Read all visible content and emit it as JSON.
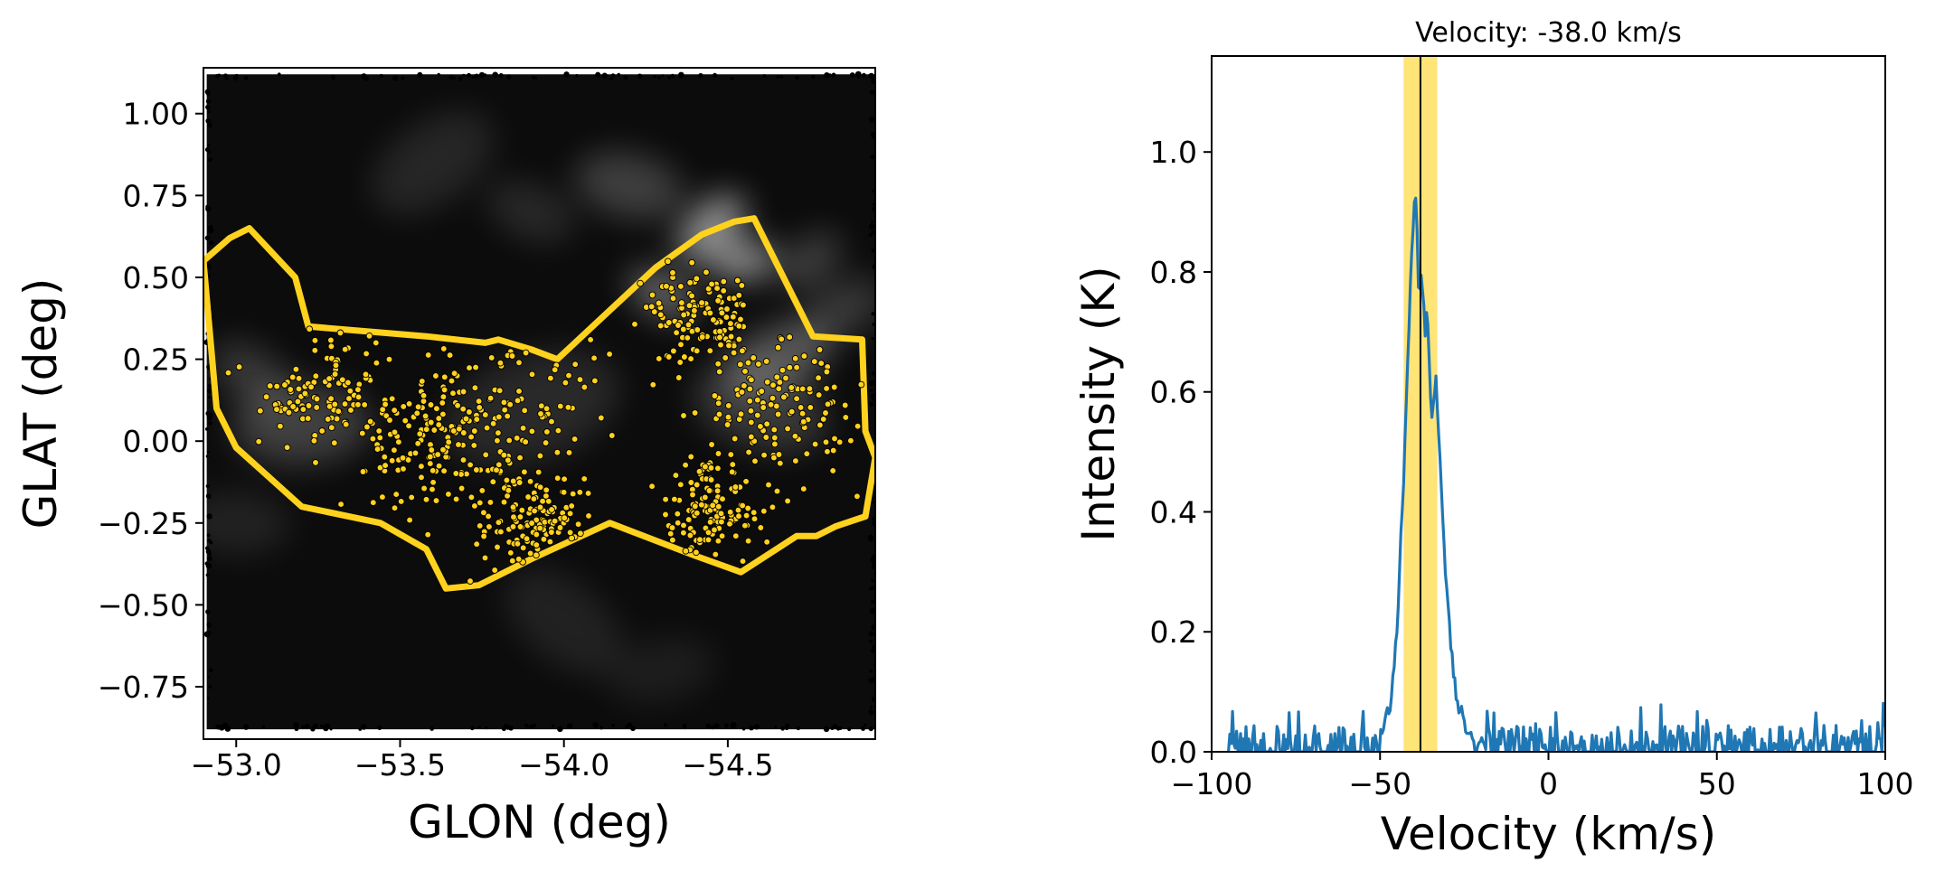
{
  "chart_data": [
    {
      "type": "image",
      "title": "",
      "xlabel": "GLON (deg)",
      "ylabel": "GLAT (deg)",
      "xlim": [
        -52.9,
        -54.95
      ],
      "ylim": [
        -0.91,
        1.14
      ],
      "xticks": [
        -53.0,
        -53.5,
        -54.0,
        -54.5
      ],
      "xtick_labels": [
        "−53.0",
        "−53.5",
        "−54.0",
        "−54.5"
      ],
      "yticks": [
        1.0,
        0.75,
        0.5,
        0.25,
        0.0,
        -0.25,
        -0.5,
        -0.75
      ],
      "ytick_labels": [
        "1.00",
        "0.75",
        "0.50",
        "0.25",
        "0.00",
        "−0.25",
        "−0.50",
        "−0.75"
      ],
      "image_extent": {
        "glon": [
          -52.91,
          -54.95
        ],
        "glat": [
          -0.88,
          1.12
        ]
      },
      "image_colormap": "grayscale",
      "image_description": "grayscale intensity map with filamentary emission",
      "emission_blobs": [
        {
          "glon": -54.45,
          "glat": 0.65,
          "sig": 0.09,
          "amp": 0.9
        },
        {
          "glon": -54.55,
          "glat": 0.55,
          "sig": 0.07,
          "amp": 0.9
        },
        {
          "glon": -54.3,
          "glat": 0.45,
          "sig": 0.08,
          "amp": 0.6
        },
        {
          "glon": -54.65,
          "glat": 0.25,
          "sig": 0.12,
          "amp": 0.5
        },
        {
          "glon": -54.2,
          "glat": 0.78,
          "sig": 0.12,
          "amp": 0.35
        },
        {
          "glon": -54.75,
          "glat": 0.55,
          "sig": 0.08,
          "amp": 0.35
        },
        {
          "glon": -53.2,
          "glat": 0.05,
          "sig": 0.15,
          "amp": 0.35
        },
        {
          "glon": -53.05,
          "glat": 0.2,
          "sig": 0.1,
          "amp": 0.3
        },
        {
          "glon": -53.9,
          "glat": 0.1,
          "sig": 0.2,
          "amp": 0.2
        },
        {
          "glon": -54.6,
          "glat": 0.1,
          "sig": 0.15,
          "amp": 0.3
        },
        {
          "glon": -53.6,
          "glat": 0.85,
          "sig": 0.15,
          "amp": 0.18
        },
        {
          "glon": -53.0,
          "glat": -0.25,
          "sig": 0.12,
          "amp": 0.15
        },
        {
          "glon": -54.0,
          "glat": -0.55,
          "sig": 0.15,
          "amp": 0.15
        },
        {
          "glon": -54.3,
          "glat": -0.7,
          "sig": 0.12,
          "amp": 0.12
        },
        {
          "glon": -53.9,
          "glat": 0.7,
          "sig": 0.1,
          "amp": 0.2
        },
        {
          "glon": -54.85,
          "glat": 0.4,
          "sig": 0.1,
          "amp": 0.3
        }
      ],
      "region_polygon": {
        "color": "#FFD21E",
        "glon": [
          -52.9,
          -52.98,
          -53.04,
          -53.18,
          -53.22,
          -53.58,
          -53.76,
          -53.8,
          -53.9,
          -53.98,
          -54.28,
          -54.42,
          -54.52,
          -54.58,
          -54.76,
          -54.91,
          -54.92,
          -54.95,
          -54.92,
          -54.83,
          -54.77,
          -54.71,
          -54.54,
          -54.4,
          -54.14,
          -53.9,
          -53.74,
          -53.64,
          -53.58,
          -53.44,
          -53.2,
          -53.0,
          -52.94,
          -52.9
        ],
        "glat": [
          0.55,
          0.62,
          0.65,
          0.5,
          0.35,
          0.32,
          0.3,
          0.31,
          0.28,
          0.25,
          0.53,
          0.63,
          0.67,
          0.68,
          0.32,
          0.31,
          0.03,
          -0.05,
          -0.23,
          -0.26,
          -0.29,
          -0.29,
          -0.4,
          -0.35,
          -0.25,
          -0.36,
          -0.44,
          -0.45,
          -0.33,
          -0.25,
          -0.2,
          -0.02,
          0.1,
          0.55
        ]
      },
      "scatter": {
        "color": "#FFD21E",
        "edgecolor": "#000000",
        "count": 900,
        "note": "yellow markers of cloud-member positions inside the region polygon"
      }
    },
    {
      "type": "line",
      "title": "Velocity: -38.0 km/s",
      "xlabel": "Velocity (km/s)",
      "ylabel": "Intensity (K)",
      "xlim": [
        -100,
        100
      ],
      "ylim": [
        0.0,
        1.16
      ],
      "xticks": [
        -100,
        -50,
        0,
        50,
        100
      ],
      "xtick_labels": [
        "−100",
        "−50",
        "0",
        "50",
        "100"
      ],
      "yticks": [
        0.0,
        0.2,
        0.4,
        0.6,
        0.8,
        1.0
      ],
      "ytick_labels": [
        "0.0",
        "0.2",
        "0.4",
        "0.6",
        "0.8",
        "1.0"
      ],
      "vline": {
        "x": -38.0,
        "color": "#000000"
      },
      "highlight_band": {
        "x0": -43.0,
        "x1": -33.0,
        "color": "#FFD21E"
      },
      "series": [
        {
          "color": "#1f77b4",
          "x_start": -95.0,
          "x_end": 100.0,
          "noise_level": 0.04,
          "peak_points": [
            [
              -50.0,
              0.02
            ],
            [
              -47.0,
              0.08
            ],
            [
              -45.0,
              0.2
            ],
            [
              -43.0,
              0.45
            ],
            [
              -42.0,
              0.62
            ],
            [
              -41.0,
              0.78
            ],
            [
              -40.0,
              0.9
            ],
            [
              -39.5,
              0.93
            ],
            [
              -39.0,
              0.88
            ],
            [
              -38.5,
              0.75
            ],
            [
              -38.0,
              0.8
            ],
            [
              -37.5,
              0.78
            ],
            [
              -37.0,
              0.74
            ],
            [
              -36.5,
              0.7
            ],
            [
              -36.0,
              0.73
            ],
            [
              -35.0,
              0.58
            ],
            [
              -34.5,
              0.55
            ],
            [
              -34.0,
              0.6
            ],
            [
              -33.5,
              0.63
            ],
            [
              -33.0,
              0.57
            ],
            [
              -32.0,
              0.45
            ],
            [
              -31.0,
              0.34
            ],
            [
              -30.0,
              0.25
            ],
            [
              -29.0,
              0.18
            ],
            [
              -28.0,
              0.12
            ],
            [
              -27.0,
              0.08
            ],
            [
              -25.0,
              0.05
            ],
            [
              -22.0,
              0.02
            ]
          ]
        }
      ]
    }
  ]
}
